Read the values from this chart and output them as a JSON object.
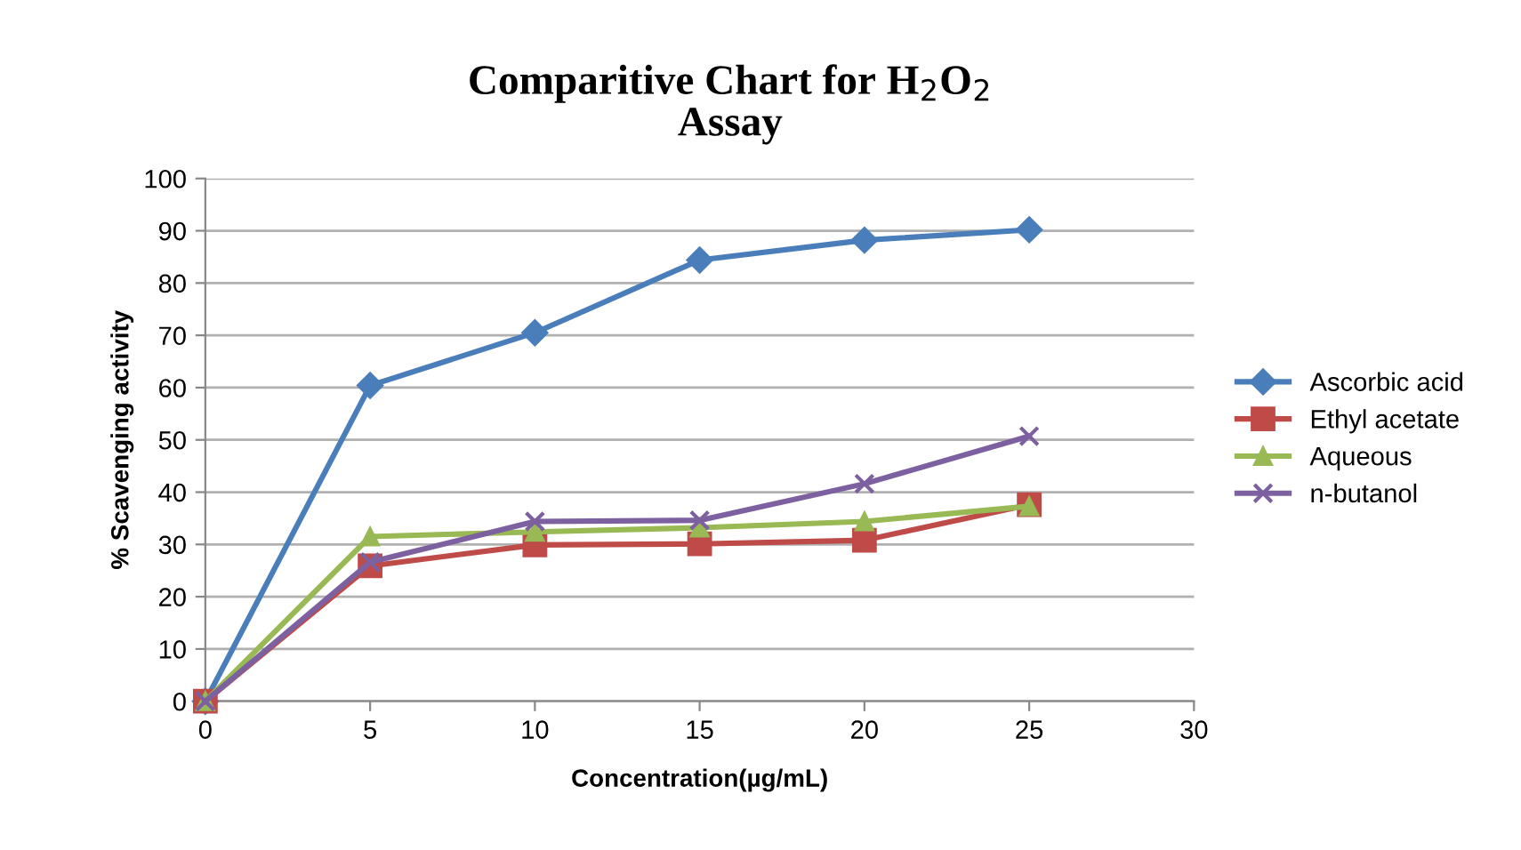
{
  "chart_data": {
    "type": "line",
    "title": "Comparitive Chart for H$_{2}$O$_{2}$\nAssay",
    "xlabel": "Concentration(µg/mL)",
    "ylabel": "% Scavenging activity",
    "x": [
      0,
      5,
      10,
      15,
      20,
      25
    ],
    "series": [
      {
        "name": "Ascorbic acid",
        "color": "#4a7ebb",
        "marker": "diamond",
        "values": [
          0,
          60.4,
          70.5,
          84.4,
          88.2,
          90.2
        ]
      },
      {
        "name": "Ethyl acetate",
        "color": "#be4b48",
        "marker": "square",
        "values": [
          0,
          25.9,
          29.9,
          30.1,
          30.8,
          37.6
        ]
      },
      {
        "name": "Aqueous",
        "color": "#98b954",
        "marker": "triangle",
        "values": [
          0,
          31.5,
          32.4,
          33.2,
          34.4,
          37.3
        ]
      },
      {
        "name": "n-butanol",
        "color": "#7d60a0",
        "marker": "cross",
        "values": [
          0,
          26.6,
          34.4,
          34.6,
          41.6,
          50.7
        ]
      }
    ],
    "xlim": [
      0,
      30
    ],
    "xticks": [
      0,
      5,
      10,
      15,
      20,
      25,
      30
    ],
    "ylim": [
      0,
      100
    ],
    "yticks": [
      0,
      10,
      20,
      30,
      40,
      50,
      60,
      70,
      80,
      90,
      100
    ],
    "grid": "y",
    "legend": "right",
    "line_style": "solid"
  }
}
